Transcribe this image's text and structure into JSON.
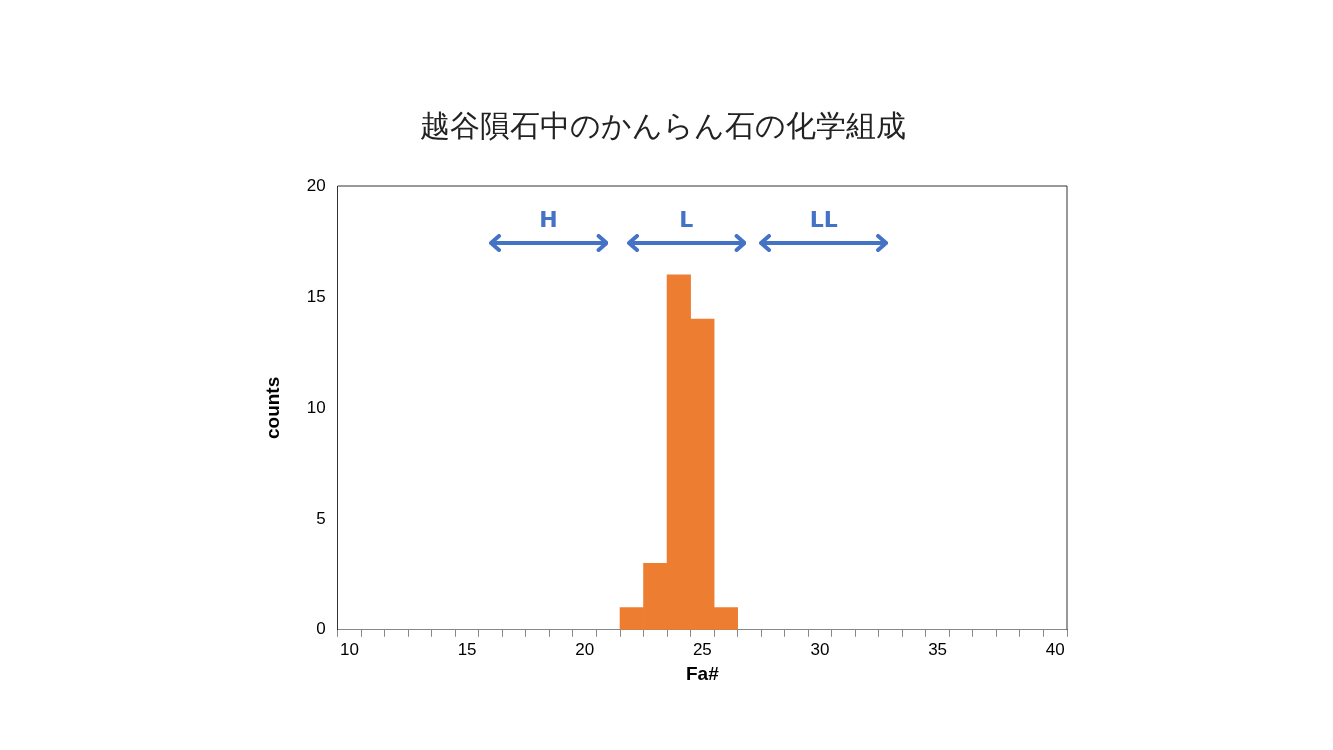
{
  "chart_data": {
    "type": "bar",
    "title": "越谷隕石中のかんらん石の化学組成",
    "xlabel": "Fa#",
    "ylabel": "counts",
    "categories": [
      "10",
      null,
      null,
      null,
      null,
      "15",
      null,
      null,
      null,
      null,
      "20",
      null,
      null,
      null,
      null,
      "25",
      null,
      null,
      null,
      null,
      "30",
      null,
      null,
      null,
      null,
      "35",
      null,
      null,
      null,
      null,
      "40"
    ],
    "values": [
      null,
      null,
      null,
      null,
      null,
      null,
      null,
      null,
      null,
      null,
      null,
      null,
      1,
      3,
      16,
      14,
      1,
      null,
      null,
      null,
      null,
      null,
      null,
      null,
      null,
      null,
      null,
      null,
      null,
      null,
      null
    ],
    "color": "#ed7d31",
    "ylim": [
      0,
      20
    ],
    "yticks": [
      0,
      5,
      10,
      15,
      20
    ],
    "grid": false,
    "annotations": [
      "H",
      "L",
      "LL"
    ]
  }
}
